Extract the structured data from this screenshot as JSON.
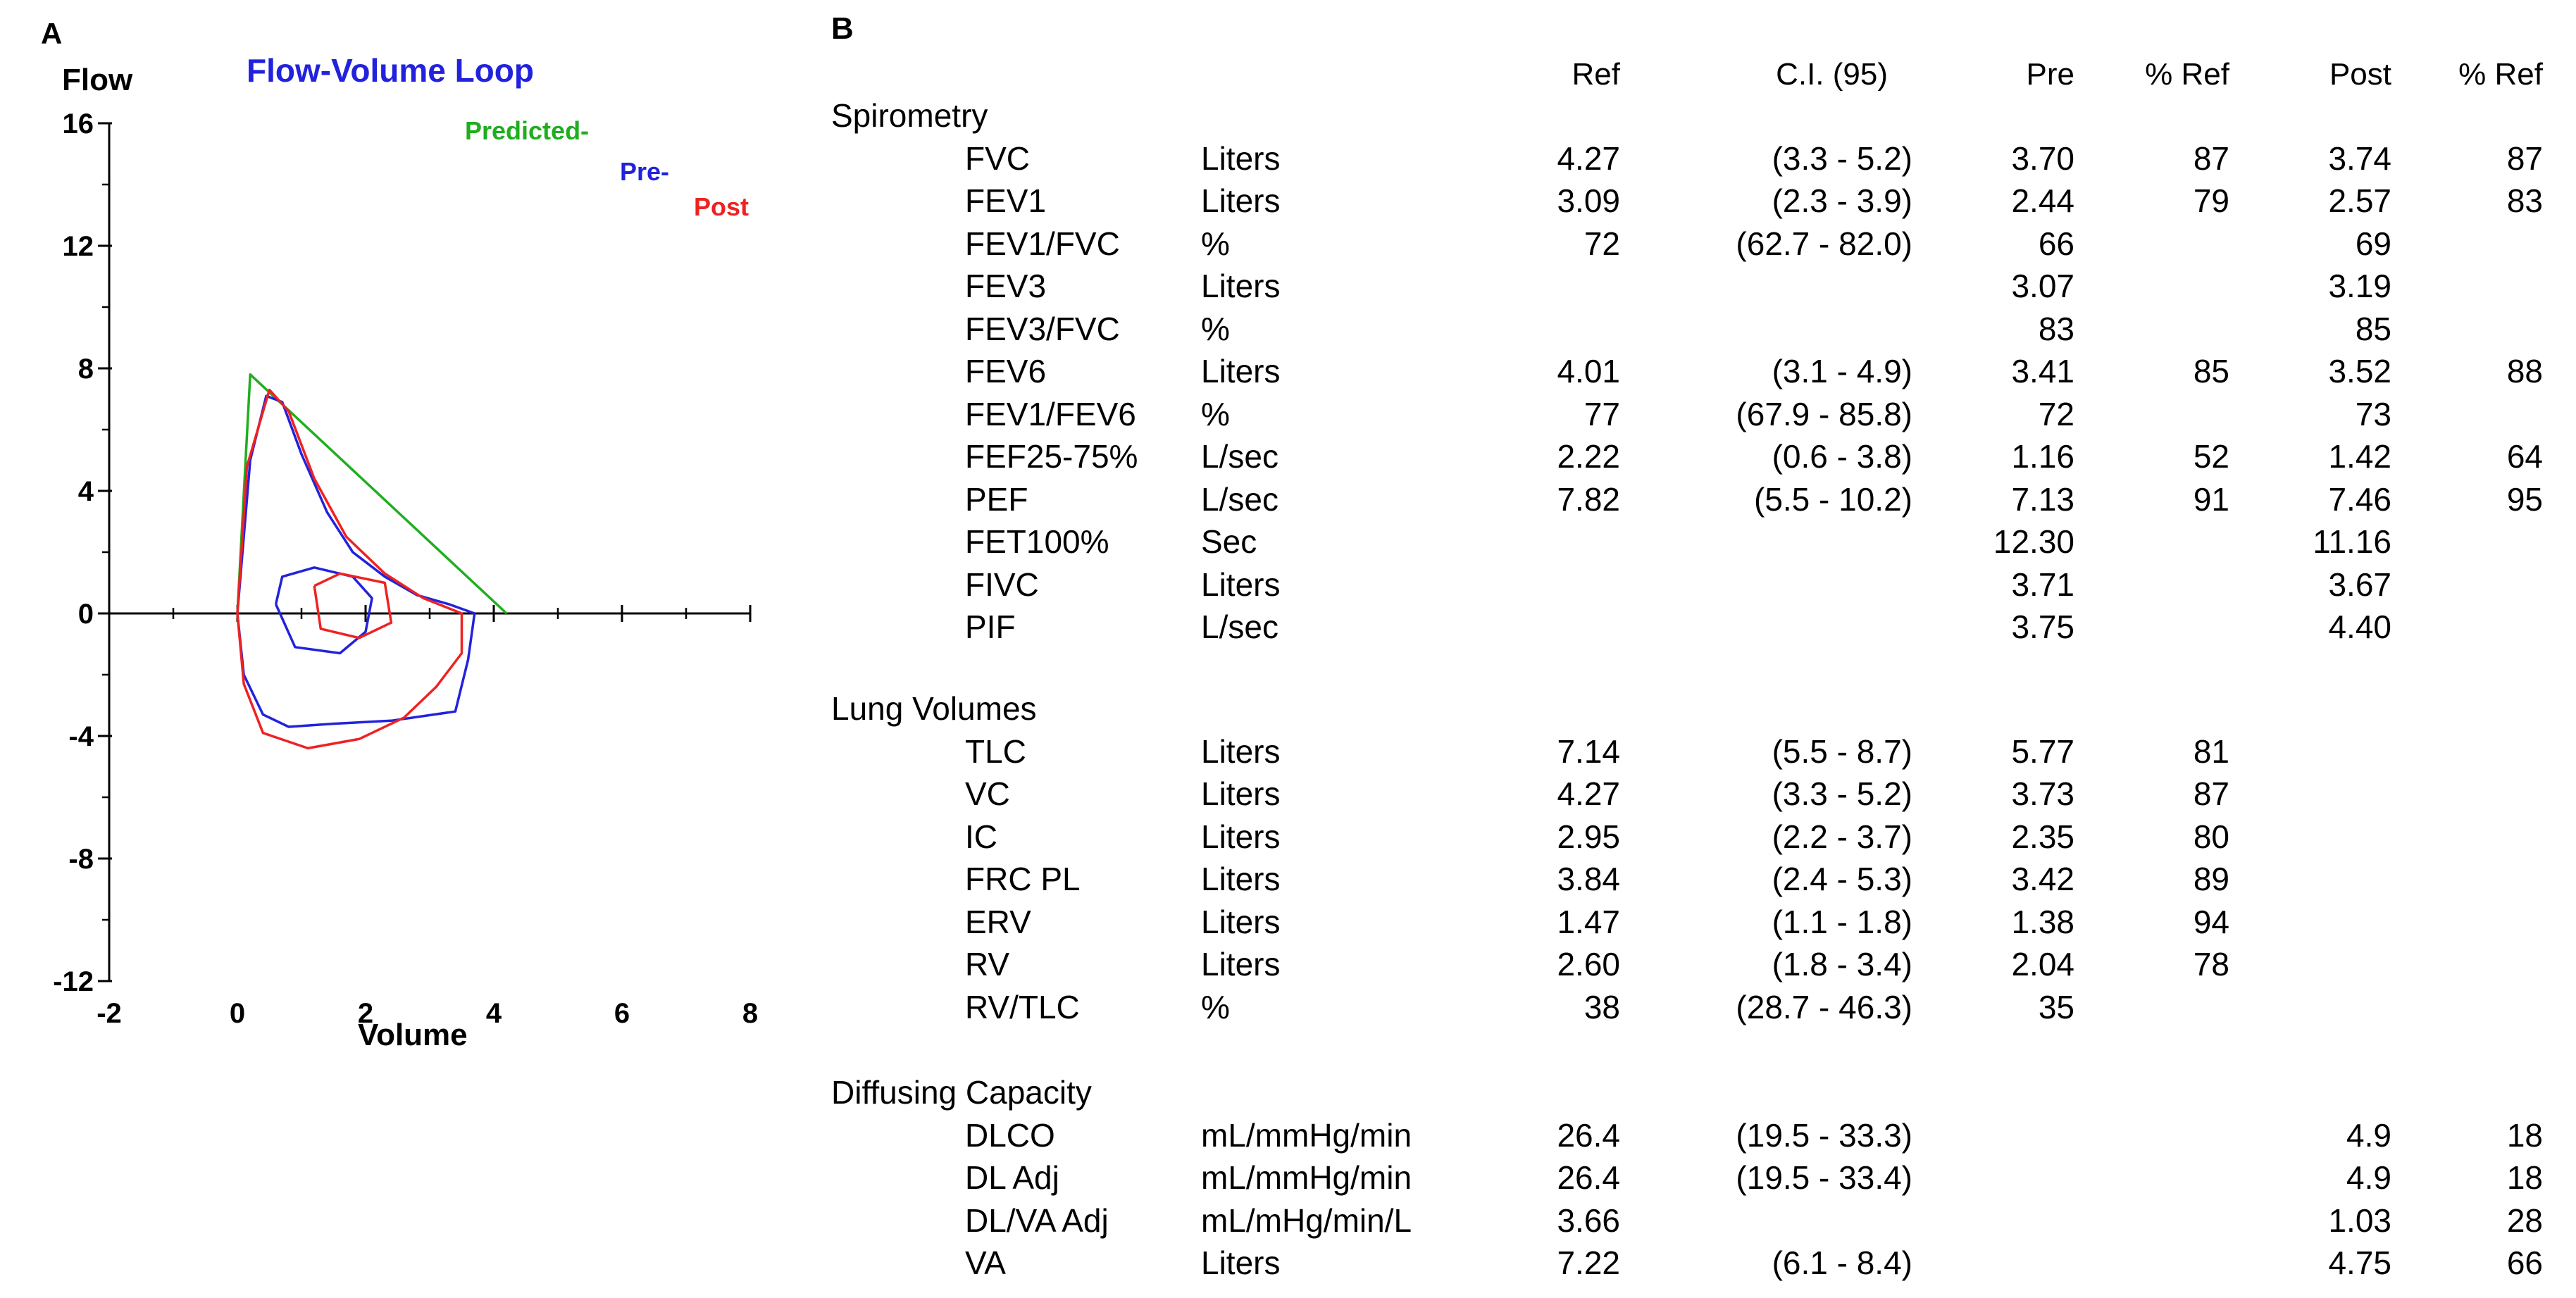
{
  "panel_a_label": "A",
  "panel_b_label": "B",
  "chart_data": {
    "type": "line",
    "title": "Flow-Volume Loop",
    "xlabel": "Volume",
    "ylabel": "Flow",
    "xlim": [
      -2,
      8
    ],
    "ylim": [
      -12,
      16
    ],
    "xticks": [
      "-2",
      "0",
      "2",
      "4",
      "6",
      "8"
    ],
    "yticks": [
      "16",
      "12",
      "8",
      "4",
      "0",
      "-4",
      "-8",
      "-12"
    ],
    "legend": [
      {
        "label": "Predicted-",
        "color": "#1fae1f"
      },
      {
        "label": "Pre-",
        "color": "#2222dd"
      },
      {
        "label": "Post",
        "color": "#ee2222"
      }
    ],
    "series": [
      {
        "name": "Predicted-",
        "color": "#1fae1f",
        "points": [
          [
            0,
            0
          ],
          [
            0.2,
            7.8
          ],
          [
            4.2,
            0
          ]
        ]
      },
      {
        "name": "Pre-",
        "color": "#2222dd",
        "points": [
          [
            0,
            0
          ],
          [
            0.2,
            5
          ],
          [
            0.45,
            7.1
          ],
          [
            0.7,
            6.9
          ],
          [
            1.0,
            5.2
          ],
          [
            1.4,
            3.3
          ],
          [
            1.8,
            2.0
          ],
          [
            2.3,
            1.2
          ],
          [
            2.8,
            0.6
          ],
          [
            3.3,
            0.3
          ],
          [
            3.7,
            0
          ],
          [
            3.6,
            -1.5
          ],
          [
            3.4,
            -3.2
          ],
          [
            2.4,
            -3.5
          ],
          [
            1.5,
            -3.6
          ],
          [
            0.8,
            -3.7
          ],
          [
            0.4,
            -3.3
          ],
          [
            0.1,
            -2.0
          ],
          [
            0,
            0
          ]
        ]
      },
      {
        "name": "Pre-",
        "color": "#2222dd",
        "points": [
          [
            0.6,
            0.3
          ],
          [
            0.7,
            1.2
          ],
          [
            1.2,
            1.5
          ],
          [
            1.8,
            1.2
          ],
          [
            2.1,
            0.5
          ],
          [
            2.0,
            -0.6
          ],
          [
            1.6,
            -1.3
          ],
          [
            0.9,
            -1.1
          ],
          [
            0.6,
            0.3
          ]
        ]
      },
      {
        "name": "Post",
        "color": "#ee2222",
        "points": [
          [
            0,
            0
          ],
          [
            0.15,
            4.8
          ],
          [
            0.5,
            7.3
          ],
          [
            0.8,
            6.6
          ],
          [
            1.2,
            4.4
          ],
          [
            1.7,
            2.5
          ],
          [
            2.3,
            1.3
          ],
          [
            2.9,
            0.5
          ],
          [
            3.5,
            0
          ],
          [
            3.5,
            -1.3
          ],
          [
            3.1,
            -2.4
          ],
          [
            2.6,
            -3.4
          ],
          [
            1.9,
            -4.1
          ],
          [
            1.1,
            -4.4
          ],
          [
            0.4,
            -3.9
          ],
          [
            0.1,
            -2.3
          ],
          [
            0,
            0
          ]
        ]
      },
      {
        "name": "Post",
        "color": "#ee2222",
        "points": [
          [
            1.2,
            0.9
          ],
          [
            1.6,
            1.3
          ],
          [
            2.3,
            1.0
          ],
          [
            2.4,
            -0.3
          ],
          [
            1.9,
            -0.8
          ],
          [
            1.3,
            -0.5
          ],
          [
            1.2,
            0.9
          ]
        ]
      }
    ]
  },
  "table": {
    "headers": {
      "ref": "Ref",
      "ci": "C.I. (95)",
      "pre": "Pre",
      "pref": "% Ref",
      "post": "Post",
      "postref": "% Ref"
    },
    "sections": [
      {
        "title": "Spirometry",
        "rows": [
          [
            "FVC",
            "Liters",
            "4.27",
            "(3.3 - 5.2)",
            "3.70",
            "87",
            "3.74",
            "87"
          ],
          [
            "FEV1",
            "Liters",
            "3.09",
            "(2.3 - 3.9)",
            "2.44",
            "79",
            "2.57",
            "83"
          ],
          [
            "FEV1/FVC",
            "%",
            "72",
            "(62.7 - 82.0)",
            "66",
            "",
            "69",
            ""
          ],
          [
            "FEV3",
            "Liters",
            "",
            "",
            "3.07",
            "",
            "3.19",
            ""
          ],
          [
            "FEV3/FVC",
            "%",
            "",
            "",
            "83",
            "",
            "85",
            ""
          ],
          [
            "FEV6",
            "Liters",
            "4.01",
            "(3.1 - 4.9)",
            "3.41",
            "85",
            "3.52",
            "88"
          ],
          [
            "FEV1/FEV6",
            "%",
            "77",
            "(67.9 - 85.8)",
            "72",
            "",
            "73",
            ""
          ],
          [
            "FEF25-75%",
            "L/sec",
            "2.22",
            "(0.6 - 3.8)",
            "1.16",
            "52",
            "1.42",
            "64"
          ],
          [
            "PEF",
            "L/sec",
            "7.82",
            "(5.5 - 10.2)",
            "7.13",
            "91",
            "7.46",
            "95"
          ],
          [
            "FET100%",
            "Sec",
            "",
            "",
            "12.30",
            "",
            "11.16",
            ""
          ],
          [
            "FIVC",
            "Liters",
            "",
            "",
            "3.71",
            "",
            "3.67",
            ""
          ],
          [
            "PIF",
            "L/sec",
            "",
            "",
            "3.75",
            "",
            "4.40",
            ""
          ]
        ]
      },
      {
        "title": "Lung Volumes",
        "rows": [
          [
            "TLC",
            "Liters",
            "7.14",
            "(5.5 - 8.7)",
            "5.77",
            "81",
            "",
            ""
          ],
          [
            "VC",
            "Liters",
            "4.27",
            "(3.3 - 5.2)",
            "3.73",
            "87",
            "",
            ""
          ],
          [
            "IC",
            "Liters",
            "2.95",
            "(2.2 - 3.7)",
            "2.35",
            "80",
            "",
            ""
          ],
          [
            "FRC PL",
            "Liters",
            "3.84",
            "(2.4 - 5.3)",
            "3.42",
            "89",
            "",
            ""
          ],
          [
            "ERV",
            "Liters",
            "1.47",
            "(1.1 - 1.8)",
            "1.38",
            "94",
            "",
            ""
          ],
          [
            "RV",
            "Liters",
            "2.60",
            "(1.8 - 3.4)",
            "2.04",
            "78",
            "",
            ""
          ],
          [
            "RV/TLC",
            "%",
            "38",
            "(28.7 - 46.3)",
            "35",
            "",
            "",
            ""
          ]
        ]
      },
      {
        "title": "Diffusing Capacity",
        "rows": [
          [
            "DLCO",
            "mL/mmHg/min",
            "26.4",
            "(19.5 - 33.3)",
            "",
            "",
            "4.9",
            "18"
          ],
          [
            "DL Adj",
            "mL/mmHg/min",
            "26.4",
            "(19.5 - 33.4)",
            "",
            "",
            "4.9",
            "18"
          ],
          [
            "DL/VA Adj",
            "mL/mHg/min/L",
            "3.66",
            "",
            "",
            "",
            "1.03",
            "28"
          ],
          [
            "VA",
            "Liters",
            "7.22",
            "(6.1 - 8.4)",
            "",
            "",
            "4.75",
            "66"
          ]
        ]
      }
    ]
  }
}
